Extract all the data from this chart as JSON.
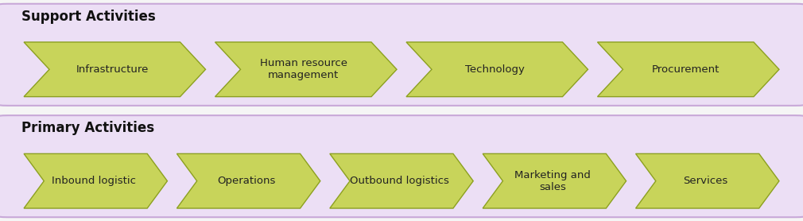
{
  "support_title": "Support Activities",
  "primary_title": "Primary Activities",
  "support_items": [
    "Infrastructure",
    "Human resource\nmanagement",
    "Technology",
    "Procurement"
  ],
  "primary_items": [
    "Inbound logistic",
    "Operations",
    "Outbound logistics",
    "Marketing and\nsales",
    "Services"
  ],
  "arrow_color": "#c8d45a",
  "arrow_edge_color": "#8ca020",
  "box_bg": "#ecdff5",
  "box_edge_color": "#c8a8d8",
  "title_color": "#111111",
  "text_color": "#222222",
  "title_fontsize": 12,
  "label_fontsize": 9.5,
  "fig_bg": "#f5f5f5",
  "notch_ratio": 0.14
}
